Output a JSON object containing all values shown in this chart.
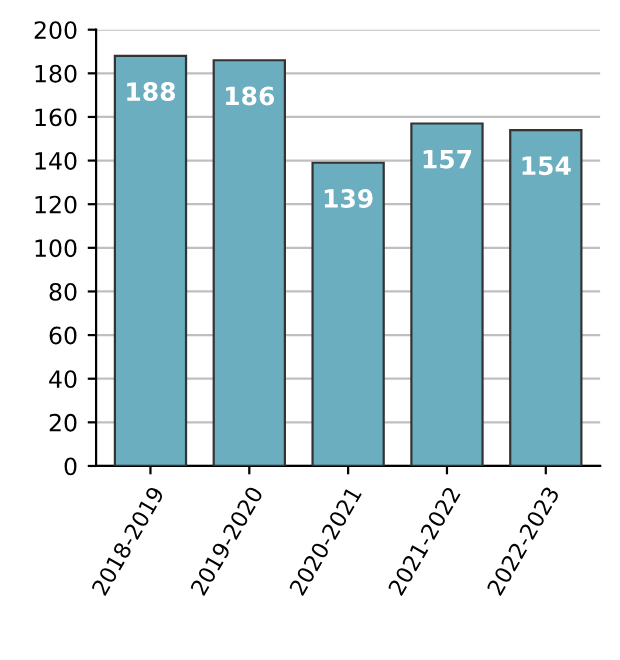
{
  "chart_data": {
    "type": "bar",
    "categories": [
      "2018-2019",
      "2019-2020",
      "2020-2021",
      "2021-2022",
      "2022-2023"
    ],
    "values": [
      188,
      186,
      139,
      157,
      154
    ],
    "color": "#6aaec0",
    "ylim": [
      0,
      200
    ],
    "yticks": [
      0,
      20,
      40,
      60,
      80,
      100,
      120,
      140,
      160,
      180,
      200
    ],
    "grid": "y",
    "data_labels": true
  }
}
